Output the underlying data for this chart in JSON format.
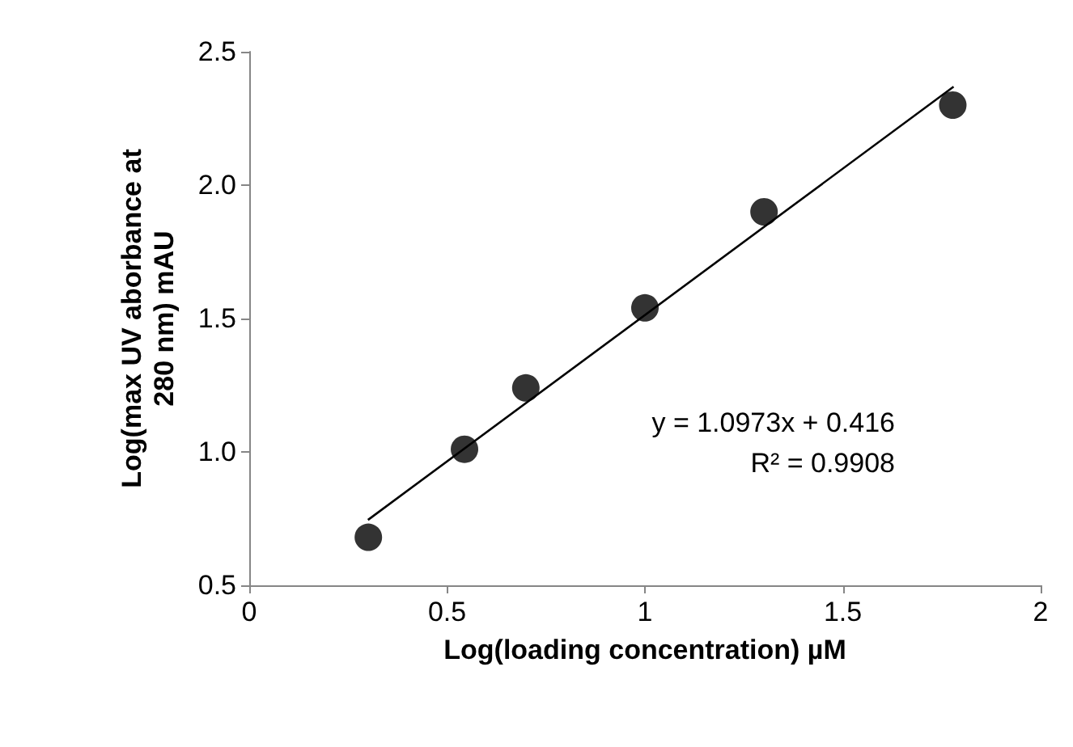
{
  "chart_data": {
    "type": "scatter",
    "xlabel": "Log(loading concentration) µM",
    "ylabel": "Log(max UV aborbance at\n280 nm) mAU",
    "x": [
      0.301,
      0.544,
      0.699,
      1.0,
      1.301,
      1.778
    ],
    "series": [
      {
        "color": "#000000",
        "marker": "circle",
        "values": [
          0.68,
          1.01,
          1.24,
          1.54,
          1.9,
          2.3
        ]
      },
      {
        "type": "line",
        "color": "#000000",
        "marker": "none",
        "x": [
          0.3,
          1.78
        ],
        "values": [
          0.745,
          2.369
        ]
      }
    ],
    "xlim": [
      0,
      2
    ],
    "xticks": [
      0,
      0.5,
      1,
      1.5,
      2
    ],
    "ylim": [
      0.5,
      2.5
    ],
    "yticks": [
      {
        "value": 0.5,
        "label": "0.5"
      },
      {
        "value": 1,
        "label": "1.0"
      },
      {
        "value": 1.5,
        "label": "1.5"
      },
      {
        "value": 2,
        "label": "2.0"
      },
      {
        "value": 2.5,
        "label": "2.5"
      }
    ],
    "grid": false,
    "annotations": [
      "y = 1.0973x + 0.416",
      "R² = 0.9908"
    ]
  }
}
